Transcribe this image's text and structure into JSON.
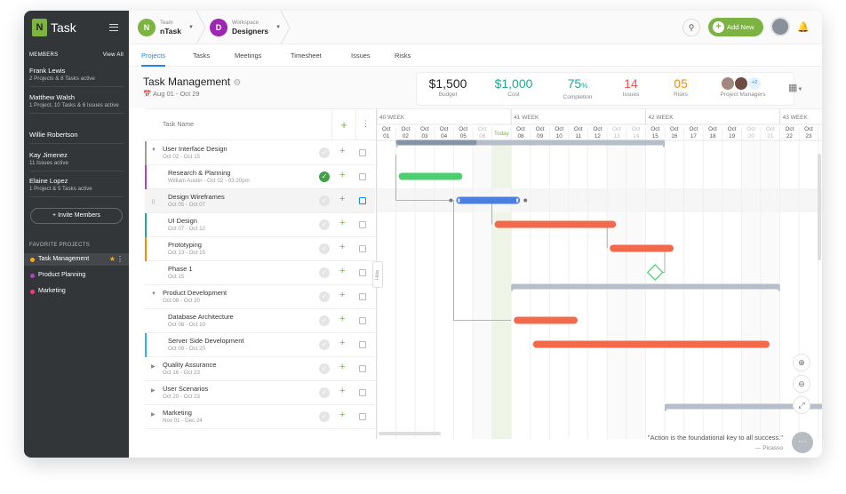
{
  "app": {
    "logo_letter": "N",
    "name": "Task"
  },
  "members": {
    "heading": "MEMBERS",
    "view_all": "View All",
    "list": [
      {
        "name": "Frank Lewis",
        "detail": "2 Projects & 8 Tasks active"
      },
      {
        "name": "Matthew Walsh",
        "detail": "1 Project, 10 Tasks & 6 Issues active"
      },
      {
        "name": "Willie Robertson",
        "detail": ""
      },
      {
        "name": "Kay Jimenez",
        "detail": "11 Issues active"
      },
      {
        "name": "Elaine Lopez",
        "detail": "1 Project & 5 Tasks active"
      }
    ],
    "invite": "+ Invite Members"
  },
  "favorites": {
    "heading": "FAVORITE PROJECTS",
    "items": [
      {
        "label": "Task Management",
        "color": "#f9a825"
      },
      {
        "label": "Product Planning",
        "color": "#ab47bc"
      },
      {
        "label": "Marketing",
        "color": "#ec407a"
      }
    ]
  },
  "topbar": {
    "team_label": "Team",
    "team_name": "nTask",
    "team_color": "#7cb342",
    "team_avatar": "N",
    "workspace_label": "Workspace",
    "workspace_name": "Designers",
    "workspace_color": "#9c27b0",
    "workspace_avatar": "D",
    "add_new": "Add New"
  },
  "tabs": [
    "Projects",
    "Tasks",
    "Meetings",
    "Timesheet",
    "Issues",
    "Risks"
  ],
  "project": {
    "title": "Task Management",
    "dates": "Aug 01 - Oct 29"
  },
  "stats": [
    {
      "value": "$1,500",
      "label": "Budget",
      "color": "#222"
    },
    {
      "value": "$1,000",
      "label": "Cost",
      "color": "#26a69a"
    },
    {
      "value": "75",
      "unit": "%",
      "label": "Completion",
      "color": "#26a69a"
    },
    {
      "value": "14",
      "label": "Issues",
      "color": "#ef5350"
    },
    {
      "value": "05",
      "label": "Risks",
      "color": "#fb8c00"
    }
  ],
  "project_managers": {
    "label": "Project Managers",
    "extra": "+2"
  },
  "task_list": {
    "header": "Task Name",
    "rows": [
      {
        "name": "User Interface Design",
        "date": "Oct 02 - Oct 15",
        "level": 0,
        "expanded": true,
        "color": "#9e9e9e",
        "done": false
      },
      {
        "name": "Research & Planning",
        "date": "William Austin - Oct 02 - 03:20pm",
        "level": 1,
        "color": "#ab47bc",
        "done": true
      },
      {
        "name": "Design Wireframes",
        "date": "Oct 05 - Oct 07",
        "level": 1,
        "color": "",
        "done": false,
        "highlight": true
      },
      {
        "name": "UI Design",
        "date": "Oct 07 - Oct 12",
        "level": 1,
        "color": "#26a69a",
        "done": false
      },
      {
        "name": "Prototyping",
        "date": "Oct 13 - Oct 15",
        "level": 1,
        "color": "#fb8c00",
        "done": false
      },
      {
        "name": "Phase 1",
        "date": "Oct 15",
        "level": 1,
        "color": "",
        "done": false
      },
      {
        "name": "Product Development",
        "date": "Oct 08 - Oct 20",
        "level": 0,
        "expanded": true,
        "color": "",
        "done": false
      },
      {
        "name": "Database Architecture",
        "date": "Oct 08 - Oct 10",
        "level": 1,
        "color": "",
        "done": false
      },
      {
        "name": "Server Side Development",
        "date": "Oct 09 - Oct 20",
        "level": 1,
        "color": "#29b6f6",
        "done": false
      },
      {
        "name": "Quality Assurance",
        "date": "Oct 16 - Oct 23",
        "level": 0,
        "expanded": false,
        "color": "",
        "done": false
      },
      {
        "name": "User Scenarios",
        "date": "Oct 20 - Oct 23",
        "level": 0,
        "expanded": false,
        "color": "",
        "done": false
      },
      {
        "name": "Marketing",
        "date": "Nov 01 - Dec 24",
        "level": 0,
        "expanded": false,
        "color": "",
        "done": false
      }
    ]
  },
  "gantt": {
    "weeks": [
      {
        "label": "40 WEEK",
        "start_day": 1
      },
      {
        "label": "41 WEEK",
        "start_day": 8
      },
      {
        "label": "42 WEEK",
        "start_day": 15
      },
      {
        "label": "43 WEEK",
        "start_day": 22
      }
    ],
    "first_day": 1,
    "day_count": 23,
    "today_day": 7,
    "today_label": "Today",
    "weekend_days": [
      6,
      7,
      13,
      14,
      20,
      21
    ],
    "bars": [
      {
        "row": 0,
        "start": 2,
        "end": 15,
        "type": "group",
        "progress": 0.3
      },
      {
        "row": 1,
        "start": 2,
        "end": 5,
        "type": "task",
        "color": "#4cd06f"
      },
      {
        "row": 2,
        "start": 5,
        "end": 8,
        "type": "task",
        "color": "#4a7fe0",
        "selected": true
      },
      {
        "row": 3,
        "start": 7,
        "end": 13,
        "type": "task",
        "color": "#f26a4b"
      },
      {
        "row": 4,
        "start": 13,
        "end": 16,
        "type": "task",
        "color": "#f26a4b"
      },
      {
        "row": 5,
        "start": 15,
        "end": 15,
        "type": "milestone",
        "color": "#4cd06f"
      },
      {
        "row": 6,
        "start": 8,
        "end": 21,
        "type": "group",
        "progress": 0
      },
      {
        "row": 7,
        "start": 8,
        "end": 11,
        "type": "task",
        "color": "#f26a4b"
      },
      {
        "row": 8,
        "start": 9,
        "end": 21,
        "type": "task",
        "color": "#f26a4b"
      },
      {
        "row": 11,
        "start": 16,
        "end": 24,
        "type": "group",
        "progress": 0
      }
    ]
  },
  "hide_label": "Hide",
  "quote": {
    "text": "\"Action is the foundational key to all success.\"",
    "author": "— Picasso"
  }
}
